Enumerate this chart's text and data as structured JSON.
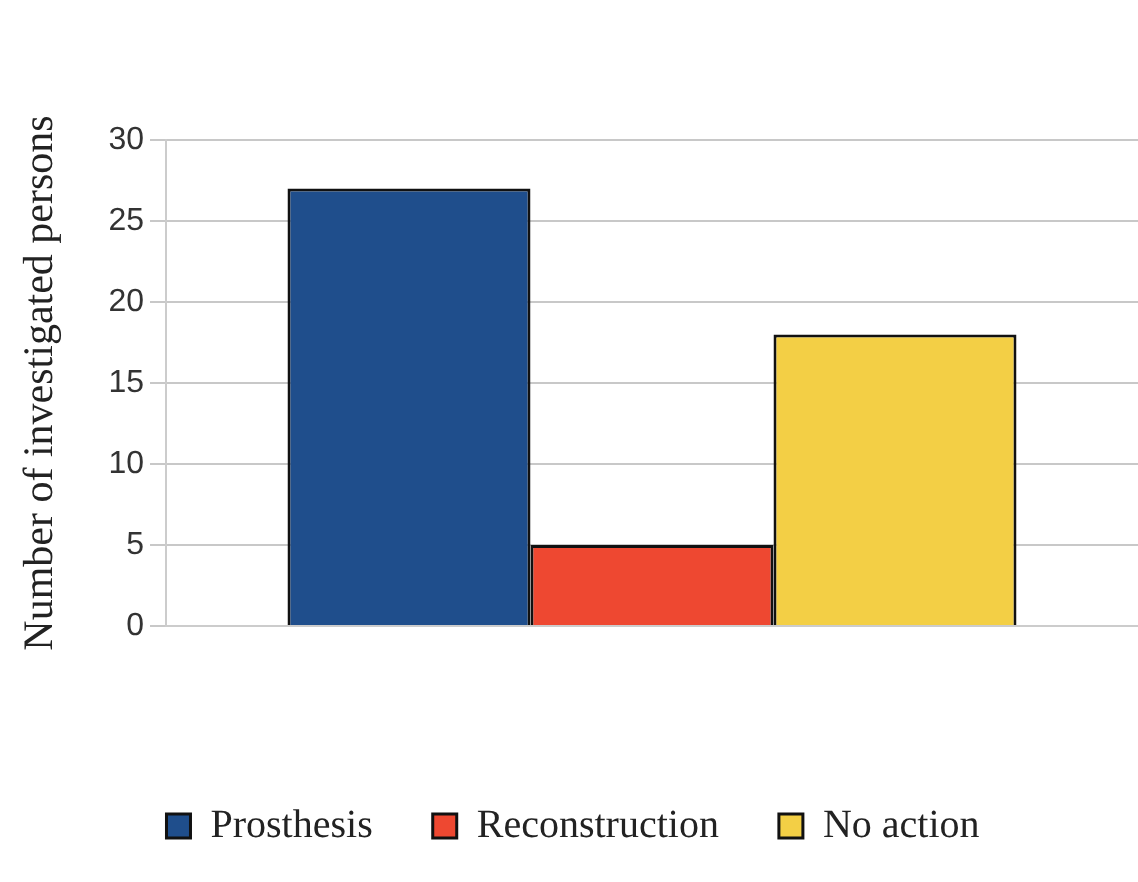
{
  "chart_data": {
    "type": "bar",
    "ylabel": "Number of investigated persons",
    "categories": [
      null
    ],
    "series": [
      {
        "name": "Prosthesis",
        "color": "#1f4e8c",
        "values": [
          27
        ]
      },
      {
        "name": "Reconstruction",
        "color": "#ee4831",
        "values": [
          5
        ]
      },
      {
        "name": "No action",
        "color": "#f3cf45",
        "values": [
          18
        ]
      }
    ],
    "ylim": [
      0,
      30
    ],
    "yticks": [
      0,
      5,
      10,
      15,
      20,
      25,
      30
    ],
    "grid": "y",
    "legend": "bottom"
  }
}
